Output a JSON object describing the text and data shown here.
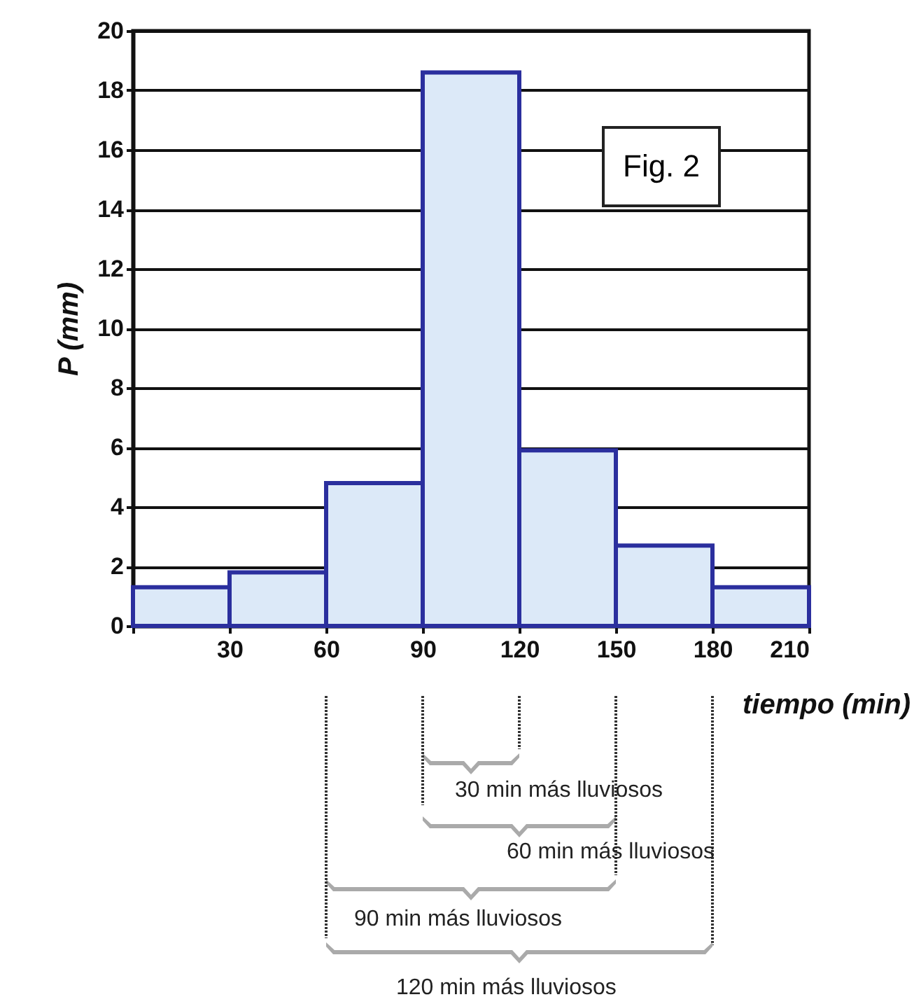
{
  "chart_data": {
    "type": "histogram",
    "xlabel": "tiempo (min)",
    "ylabel": "P (mm)",
    "bins": [
      0,
      30,
      60,
      90,
      120,
      150,
      180,
      210
    ],
    "values": [
      1.3,
      1.8,
      4.8,
      18.6,
      5.9,
      2.7,
      1.3
    ],
    "color": "#dce9f8",
    "xlim": [
      0,
      210
    ],
    "xticks": [
      {
        "value": 0,
        "label": null
      },
      30,
      60,
      90,
      120,
      150,
      180,
      210
    ],
    "ylim": [
      0,
      20
    ],
    "yticks": [
      0,
      2,
      4,
      6,
      8,
      10,
      12,
      14,
      16,
      18,
      20
    ],
    "grid": "y",
    "annotations": [
      "Fig. 2",
      "30 min más lluviosos",
      "60 min más lluviosos",
      "90 min más lluviosos",
      "120 min más lluviosos"
    ]
  }
}
